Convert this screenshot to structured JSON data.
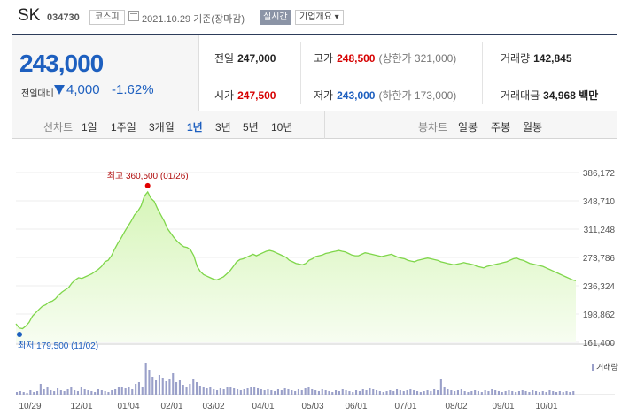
{
  "header": {
    "name": "SK",
    "code": "034730",
    "market": "코스피",
    "date": "2021.10.29  기준(장마감)",
    "realtime_label": "실시간",
    "company_info_label": "기업개요 ▾"
  },
  "price": {
    "current": "243,000",
    "change_label": "전일대비",
    "change_value": "4,000",
    "change_pct": "-1.62%"
  },
  "stats": {
    "prev_label": "전일",
    "prev_value": "247,000",
    "high_label": "고가",
    "high_value": "248,500",
    "upper_limit": "(상한가 321,000)",
    "volume_label": "거래량",
    "volume_value": "142,845",
    "open_label": "시가",
    "open_value": "247,500",
    "low_label": "저가",
    "low_value": "243,000",
    "lower_limit": "(하한가 173,000)",
    "amount_label": "거래대금",
    "amount_value": "34,968 백만"
  },
  "tabs": {
    "line_label": "선차트",
    "periods": [
      "1일",
      "1주일",
      "3개월",
      "1년",
      "3년",
      "5년",
      "10년"
    ],
    "active_period": "1년",
    "candle_label": "봉차트",
    "candles": [
      "일봉",
      "주봉",
      "월봉"
    ]
  },
  "chart_data": {
    "type": "area",
    "title": "",
    "y_ticks": [
      "386,172",
      "348,710",
      "311,248",
      "273,786",
      "236,324",
      "198,862",
      "161,400"
    ],
    "ylim": [
      161400,
      386172
    ],
    "x_ticks": [
      "10/29",
      "12/01",
      "01/04",
      "02/01",
      "03/02",
      "04/01",
      "05/03",
      "06/01",
      "07/01",
      "08/02",
      "09/01",
      "10/01"
    ],
    "high_annotation": "최고  360,500 (01/26)",
    "low_annotation": "최저  179,500 (11/02)",
    "volume_legend": "거래량",
    "colors": {
      "line": "#7fd64a",
      "fill_top": "#d6f5b8",
      "high": "#e00000",
      "low": "#1d5fbf",
      "volume": "#9aa0c9"
    },
    "series": [
      {
        "values": [
          186000,
          180500,
          179500,
          183000,
          188000,
          196000,
          200500,
          205000,
          209000,
          211000,
          214500,
          216000,
          219000,
          224000,
          228000,
          231000,
          234000,
          240000,
          244000,
          247000,
          246000,
          248000,
          250000,
          252000,
          255000,
          258000,
          262000,
          268000,
          270000,
          276000,
          285000,
          293000,
          300000,
          308000,
          315000,
          322000,
          330000,
          335000,
          342000,
          355000,
          360500,
          352000,
          348000,
          338000,
          330000,
          322000,
          312000,
          306000,
          300000,
          295000,
          291000,
          288000,
          287000,
          284000,
          276000,
          262000,
          255000,
          251000,
          249000,
          247000,
          245000,
          244000,
          246000,
          248000,
          252000,
          256000,
          262000,
          268000,
          271000,
          272000,
          274000,
          276000,
          278000,
          276000,
          278000,
          280000,
          282000,
          283000,
          282000,
          280000,
          278000,
          276000,
          274000,
          270000,
          268000,
          266000,
          265000,
          264000,
          266000,
          270000,
          272000,
          275000,
          276000,
          277000,
          279000,
          280000,
          281000,
          282000,
          283000,
          282000,
          281000,
          279000,
          277000,
          276000,
          276000,
          278000,
          280000,
          279000,
          278000,
          277000,
          276000,
          275000,
          276000,
          277000,
          278000,
          276000,
          274000,
          273000,
          272000,
          270000,
          269000,
          268000,
          270000,
          271000,
          272000,
          273000,
          272000,
          271000,
          270000,
          268000,
          267000,
          266000,
          265000,
          264000,
          265000,
          266000,
          267000,
          266000,
          265000,
          264000,
          262000,
          261000,
          260000,
          262000,
          263000,
          264000,
          265000,
          266000,
          267000,
          268000,
          270000,
          272000,
          273000,
          271000,
          270000,
          268000,
          266000,
          265000,
          264000,
          263000,
          262000,
          260000,
          258000,
          256000,
          254000,
          252000,
          250000,
          248000,
          246000,
          244000,
          243000
        ]
      }
    ]
  }
}
